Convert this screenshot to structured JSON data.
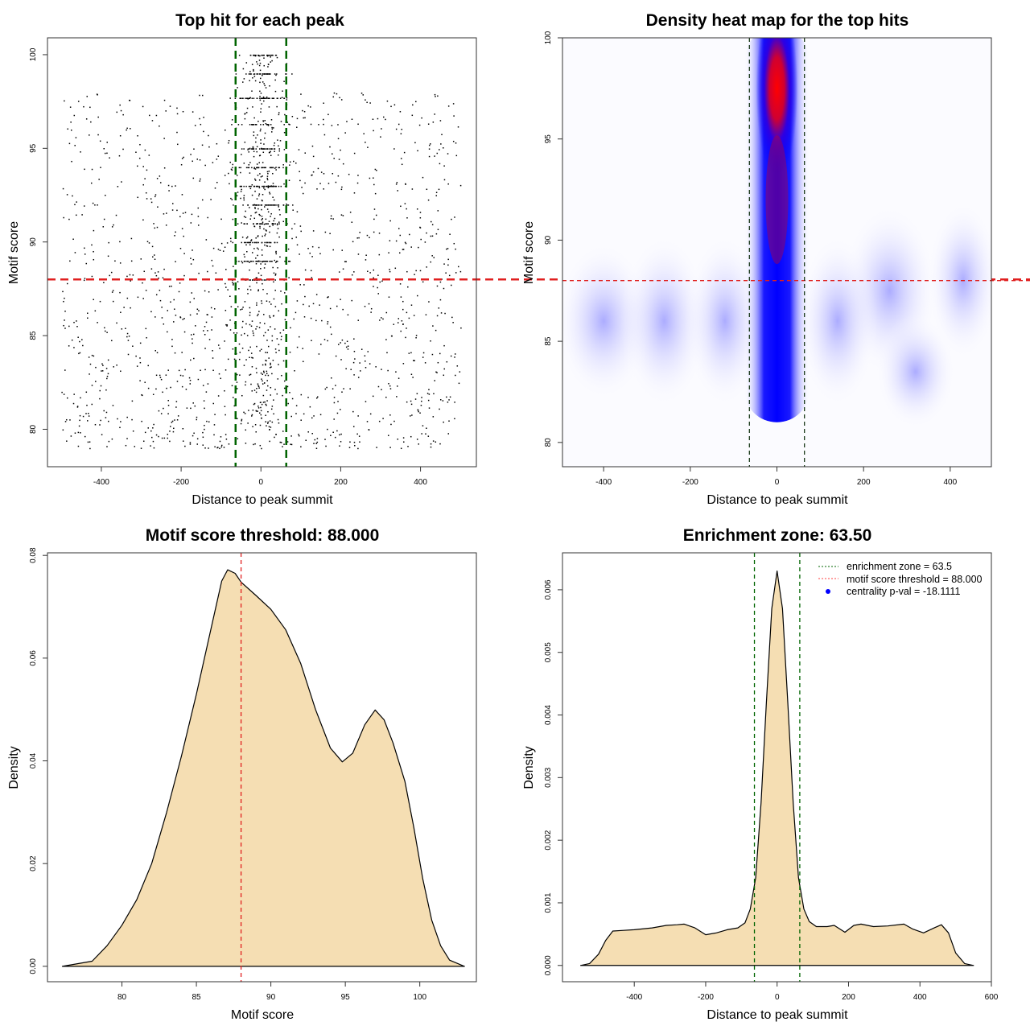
{
  "chart_data": [
    {
      "type": "scatter",
      "title": "Top hit for each peak",
      "xlabel": "Distance to peak summit",
      "ylabel": "Motif score",
      "xlim": [
        -535,
        540
      ],
      "ylim": [
        78,
        100.9
      ],
      "xticks": [
        -400,
        -200,
        0,
        200,
        400
      ],
      "yticks": [
        80,
        85,
        90,
        95,
        100
      ],
      "hlines": [
        {
          "y": 88,
          "color": "#e02020",
          "style": "dashed"
        }
      ],
      "vlines": [
        {
          "x": -63.5,
          "color": "#006400",
          "style": "dashed"
        },
        {
          "x": 63.5,
          "color": "#006400",
          "style": "dashed"
        }
      ],
      "points_note": "approx. 2000 top hits; background uniform over [-500,500] x [79,100], dense central column |x|<60 with high scores"
    },
    {
      "type": "heatmap",
      "title": "Density heat map for the top hits",
      "xlabel": "Distance to peak summit",
      "ylabel": "Motif score",
      "xlim": [
        -495,
        495
      ],
      "ylim": [
        78.8,
        100
      ],
      "xticks": [
        -400,
        -200,
        0,
        200,
        400
      ],
      "yticks": [
        80,
        85,
        90,
        95,
        100
      ],
      "colorscale": [
        "#ffffff",
        "#0000ff",
        "#ff0000"
      ],
      "hot_spot": {
        "x": 0,
        "y": 97.5
      },
      "hlines": [
        {
          "y": 88,
          "color": "#e02020",
          "style": "dashed"
        }
      ],
      "vlines": [
        {
          "x": -63.5,
          "color": "#1a3a1a",
          "style": "dashed"
        },
        {
          "x": 63.5,
          "color": "#1a3a1a",
          "style": "dashed"
        }
      ]
    },
    {
      "type": "area",
      "title": "Motif score threshold: 88.000",
      "xlabel": "Motif score",
      "ylabel": "Density",
      "xlim": [
        75,
        103.8
      ],
      "ylim": [
        -0.003,
        0.0805
      ],
      "xticks": [
        80,
        85,
        90,
        95,
        100
      ],
      "yticks": [
        0.0,
        0.02,
        0.04,
        0.06,
        0.08
      ],
      "ytick_labels": [
        "0.00",
        "0.02",
        "0.04",
        "0.06",
        "0.08"
      ],
      "fill": "#f5deb3",
      "x": [
        76,
        78,
        79,
        80,
        81,
        82,
        83,
        84,
        85,
        86,
        86.7,
        87.1,
        87.6,
        88,
        89,
        90,
        91,
        92,
        93,
        94,
        94.8,
        95.5,
        96.3,
        97,
        97.6,
        98.2,
        99,
        99.6,
        100.2,
        100.8,
        101.4,
        102,
        103
      ],
      "y": [
        0,
        0.001,
        0.004,
        0.008,
        0.013,
        0.02,
        0.03,
        0.041,
        0.053,
        0.066,
        0.075,
        0.0772,
        0.0765,
        0.0748,
        0.0722,
        0.0695,
        0.0655,
        0.059,
        0.05,
        0.0425,
        0.0398,
        0.0415,
        0.047,
        0.0499,
        0.048,
        0.0435,
        0.036,
        0.027,
        0.017,
        0.009,
        0.004,
        0.0012,
        0
      ],
      "vlines": [
        {
          "x": 88,
          "color": "#e02020",
          "style": "dashed"
        }
      ]
    },
    {
      "type": "area",
      "title": "Enrichment zone: 63.50",
      "xlabel": "Distance to peak summit",
      "ylabel": "Density",
      "xlim": [
        -601,
        600
      ],
      "ylim": [
        -0.00026,
        0.00659
      ],
      "xticks": [
        -400,
        -200,
        0,
        200,
        400,
        600
      ],
      "yticks": [
        0,
        0.001,
        0.002,
        0.003,
        0.004,
        0.005,
        0.006
      ],
      "ytick_labels": [
        "0.000",
        "0.001",
        "0.002",
        "0.003",
        "0.004",
        "0.005",
        "0.006"
      ],
      "fill": "#f5deb3",
      "x": [
        -550,
        -525,
        -500,
        -480,
        -460,
        -430,
        -400,
        -350,
        -310,
        -280,
        -260,
        -230,
        -200,
        -170,
        -140,
        -110,
        -90,
        -75,
        -60,
        -45,
        -30,
        -15,
        0,
        15,
        30,
        45,
        60,
        75,
        90,
        110,
        140,
        160,
        190,
        215,
        235,
        270,
        310,
        355,
        380,
        410,
        440,
        460,
        480,
        500,
        525,
        550
      ],
      "y": [
        0,
        3e-05,
        0.00018,
        0.0004,
        0.00055,
        0.00056,
        0.00057,
        0.0006,
        0.00064,
        0.00065,
        0.00066,
        0.0006,
        0.00049,
        0.00052,
        0.00057,
        0.0006,
        0.00068,
        0.0009,
        0.0014,
        0.0026,
        0.0042,
        0.0057,
        0.0063,
        0.0057,
        0.0042,
        0.0026,
        0.0014,
        0.0009,
        0.0007,
        0.00062,
        0.00062,
        0.00064,
        0.00053,
        0.00064,
        0.00066,
        0.00062,
        0.00063,
        0.00066,
        0.00058,
        0.00052,
        0.0006,
        0.00065,
        0.00052,
        0.0002,
        3e-05,
        0
      ],
      "vlines": [
        {
          "x": -63.5,
          "color": "#006400",
          "style": "dashed"
        },
        {
          "x": 63.5,
          "color": "#006400",
          "style": "dashed"
        }
      ],
      "legend": {
        "placement": "top-right",
        "entries": [
          {
            "label": "enrichment zone = 63.5",
            "color": "#006400",
            "style": "dotted-line"
          },
          {
            "label": "motif score threshold = 88.000",
            "color": "#ff4040",
            "style": "dotted-line"
          },
          {
            "label": "centrality p-val = -18.1111",
            "color": "#0000ff",
            "style": "point"
          }
        ]
      }
    }
  ]
}
